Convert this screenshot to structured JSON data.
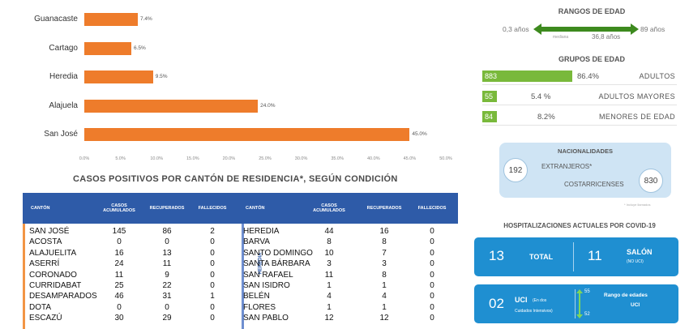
{
  "bar_chart": {
    "categories": [
      "Guanacaste",
      "Cartago",
      "Heredia",
      "Alajuela",
      "San José"
    ],
    "value_labels": [
      "7.4%",
      "6.5%",
      "9.5%",
      "24.0%",
      "45.0%"
    ],
    "x_tick_labels": [
      "0.0%",
      "5.0%",
      "10.0%",
      "15.0%",
      "20.0%",
      "25.0%",
      "30.0%",
      "35.0%",
      "40.0%",
      "45.0%",
      "50.0%"
    ],
    "bar_color": "#ee7c2b"
  },
  "chart_data": {
    "type": "bar",
    "orientation": "horizontal",
    "categories": [
      "Guanacaste",
      "Cartago",
      "Heredia",
      "Alajuela",
      "San José"
    ],
    "values": [
      7.4,
      6.5,
      9.5,
      24.0,
      45.0
    ],
    "xlim": [
      0,
      50
    ],
    "xticks": [
      0,
      5,
      10,
      15,
      20,
      25,
      30,
      35,
      40,
      45,
      50
    ],
    "title": "",
    "xlabel": "",
    "ylabel": ""
  },
  "canton_table": {
    "title": "CASOS POSITIVOS POR CANTÓN DE RESIDENCIA*, SEGÚN CONDICIÓN",
    "headers_left": [
      "CANTÓN",
      "CASOS ACUMULADOS",
      "RECUPERADOS",
      "FALLECIDOS"
    ],
    "headers_right": [
      "CANTÓN",
      "CASOS ACUMULADOS",
      "RECUPERADOS",
      "FALLECIDOS"
    ],
    "province_label_right": "HEREDIA",
    "rows": [
      {
        "left": [
          "SAN JOSÉ",
          "145",
          "86",
          "2"
        ],
        "right": [
          "HEREDIA",
          "44",
          "16",
          "0"
        ]
      },
      {
        "left": [
          "ACOSTA",
          "0",
          "0",
          "0"
        ],
        "right": [
          "BARVA",
          "8",
          "8",
          "0"
        ]
      },
      {
        "left": [
          "ALAJUELITA",
          "16",
          "13",
          "0"
        ],
        "right": [
          "SANTO DOMINGO",
          "10",
          "7",
          "0"
        ]
      },
      {
        "left": [
          "ASERRÍ",
          "24",
          "11",
          "0"
        ],
        "right": [
          "SANTA BÁRBARA",
          "3",
          "3",
          "0"
        ]
      },
      {
        "left": [
          "CORONADO",
          "11",
          "9",
          "0"
        ],
        "right": [
          "SAN RAFAEL",
          "11",
          "8",
          "0"
        ]
      },
      {
        "left": [
          "CURRIDABAT",
          "25",
          "22",
          "0"
        ],
        "right": [
          "SAN ISIDRO",
          "1",
          "1",
          "0"
        ]
      },
      {
        "left": [
          "DESAMPARADOS",
          "46",
          "31",
          "1"
        ],
        "right": [
          "BELÉN",
          "4",
          "4",
          "0"
        ]
      },
      {
        "left": [
          "DOTA",
          "0",
          "0",
          "0"
        ],
        "right": [
          "FLORES",
          "1",
          "1",
          "0"
        ]
      },
      {
        "left": [
          "ESCAZÚ",
          "30",
          "29",
          "0"
        ],
        "right": [
          "SAN PABLO",
          "12",
          "12",
          "0"
        ]
      }
    ]
  },
  "age_ranges": {
    "title": "RANGOS DE EDAD",
    "min": "0,3 años",
    "max": "89 años",
    "median_label": "mediana",
    "median": "36,8 años",
    "arrow_color": "#3d8a1e"
  },
  "age_groups": {
    "title": "GRUPOS DE EDAD",
    "color": "#79b93b",
    "items": [
      {
        "count": "883",
        "percent": "86.4%",
        "label": "ADULTOS",
        "share": 86.4
      },
      {
        "count": "55",
        "percent": "5.4 %",
        "label": "ADULTOS MAYORES",
        "share": 5.4
      },
      {
        "count": "84",
        "percent": "8.2%",
        "label": "MENORES DE EDAD",
        "share": 8.2
      }
    ]
  },
  "nationalities": {
    "title": "NACIONALIDADES",
    "foreign_count": "192",
    "foreign_label": "EXTRANJEROS*",
    "national_count": "830",
    "national_label": "COSTARRICENSES",
    "footnote": "* Incluye llamados"
  },
  "hospitalizations": {
    "title": "HOSPITALIZACIONES ACTUALES POR COVID-19",
    "total_count": "13",
    "total_label": "TOTAL",
    "salon_count": "11",
    "salon_label": "SALÓN",
    "salon_sub": "(NO UCI)",
    "uci_count": "02",
    "uci_label": "UCI",
    "uci_sub1": "(En dos",
    "uci_sub2": "Cuidados Intensivos)",
    "age_range_title": "Rango de edades",
    "age_range_unit": "UCI",
    "age_range_high": "55",
    "age_range_low": "52"
  }
}
